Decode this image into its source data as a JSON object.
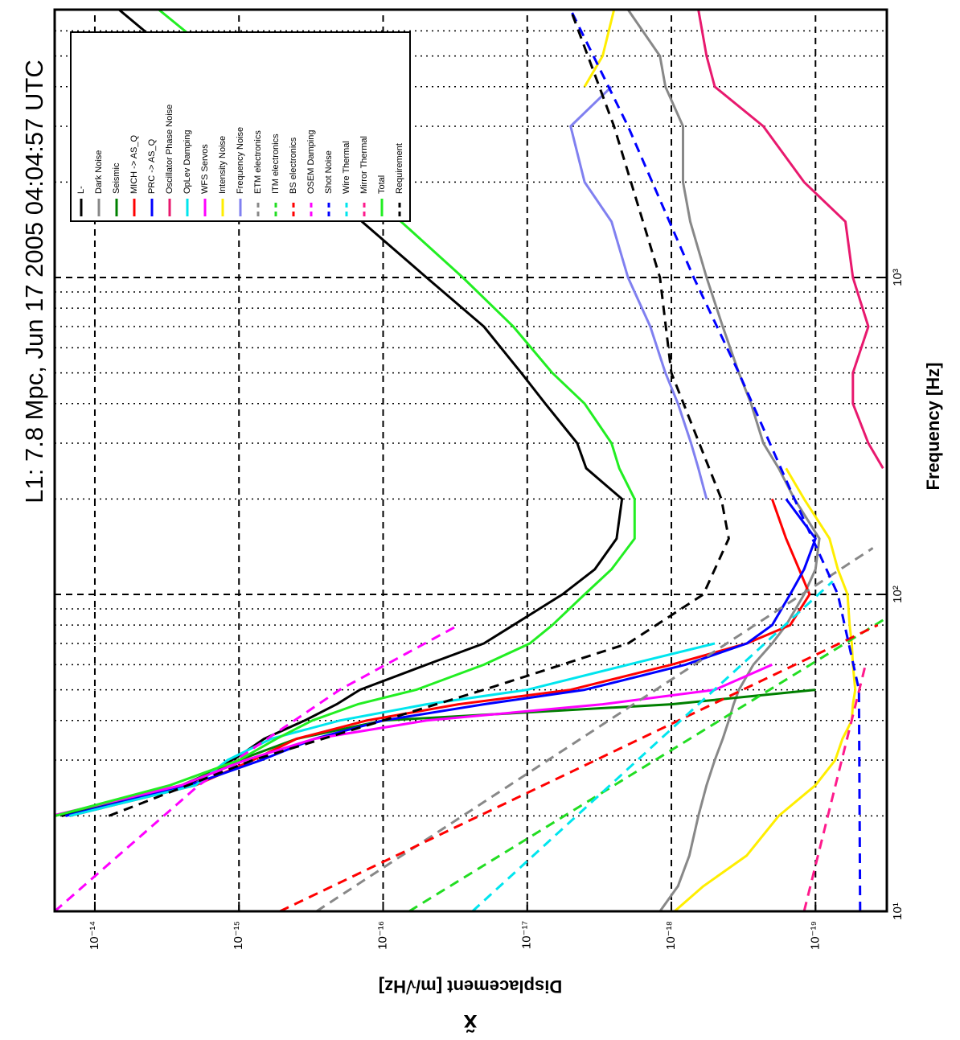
{
  "chart_data": {
    "type": "line",
    "title": "L1: 7.8 Mpc, Jun 17 2005 04:04:57 UTC",
    "xlabel": "Frequency [Hz]",
    "ylabel": "Displacement [m/√Hz]",
    "quantity_symbol": "x̃",
    "xscale": "log",
    "yscale": "log",
    "grid": true,
    "legend": "upper right",
    "xlim": [
      10,
      7000
    ],
    "ylim": [
      3.2e-20,
      1.9e-14
    ],
    "xticks": [
      {
        "value": 10,
        "label": "10¹"
      },
      {
        "value": 100,
        "label": "10²"
      },
      {
        "value": 1000,
        "label": "10³"
      }
    ],
    "xminor_ticks": [
      20,
      30,
      40,
      50,
      60,
      70,
      80,
      90,
      200,
      300,
      400,
      500,
      600,
      700,
      800,
      900,
      2000,
      3000,
      4000,
      5000,
      6000,
      7000
    ],
    "yticks": [
      {
        "value": 1e-14,
        "label": "10⁻¹⁴"
      },
      {
        "value": 1e-15,
        "label": "10⁻¹⁵"
      },
      {
        "value": 1e-16,
        "label": "10⁻¹⁶"
      },
      {
        "value": 1e-17,
        "label": "10⁻¹⁷"
      },
      {
        "value": 1e-18,
        "label": "10⁻¹⁸"
      },
      {
        "value": 1e-19,
        "label": "10⁻¹⁹"
      }
    ],
    "x": [
      10,
      12,
      15,
      20,
      25,
      30,
      35,
      40,
      45,
      50,
      60,
      70,
      80,
      100,
      120,
      150,
      200,
      250,
      300,
      400,
      500,
      700,
      1000,
      1500,
      2000,
      3000,
      4000,
      5000,
      7000
    ],
    "series": [
      {
        "name": "L-",
        "color": "#000000",
        "values": [
          null,
          null,
          null,
          1.7e-14,
          2.3e-15,
          1.1e-15,
          6.7e-16,
          3.5e-16,
          2.1e-16,
          1.45e-16,
          5e-17,
          2e-17,
          1.25e-17,
          5.7e-18,
          3.4e-18,
          2.4e-18,
          2.2e-18,
          3.9e-18,
          4.5e-18,
          7.5e-18,
          1.1e-17,
          2e-17,
          5e-17,
          1.4e-16,
          2.7e-16,
          7.6e-16,
          1.45e-15,
          2.8e-15,
          6.8e-15
        ]
      },
      {
        "name": "Dark Noise",
        "color": "#888888",
        "values": [
          1.2e-18,
          9e-19,
          7.5e-19,
          6.5e-19,
          5.7e-19,
          5e-19,
          4.4e-19,
          4e-19,
          3.7e-19,
          3.4e-19,
          2.7e-19,
          2e-19,
          1.6e-19,
          1.2e-19,
          1e-19,
          9.4e-20,
          1.4e-19,
          1.8e-19,
          2.3e-19,
          2.8e-19,
          3.4e-19,
          4.4e-19,
          5.7e-19,
          7.4e-19,
          8.3e-19,
          8.3e-19,
          1.1e-18,
          1.2e-18,
          2e-18
        ]
      },
      {
        "name": "Seismic",
        "color": "#008000",
        "values": [
          null,
          null,
          null,
          1.9e-14,
          2.5e-15,
          1e-15,
          4e-16,
          1e-16,
          1e-18,
          1e-19,
          null,
          null,
          null,
          null,
          null,
          null,
          null,
          null,
          null,
          null,
          null,
          null,
          null,
          null,
          null,
          null,
          null,
          null,
          null
        ]
      },
      {
        "name": "MICH -> AS_Q",
        "color": "#ff0000",
        "values": [
          null,
          null,
          null,
          1.5e-14,
          2e-15,
          8e-16,
          4e-16,
          1.3e-16,
          3e-17,
          5e-18,
          1e-18,
          3e-19,
          1.5e-19,
          1.1e-19,
          1.3e-19,
          1.6e-19,
          2e-19,
          null,
          null,
          null,
          null,
          null,
          null,
          null,
          null,
          null,
          null,
          null,
          null
        ]
      },
      {
        "name": "PRC -> AS_Q",
        "color": "#0000ff",
        "values": [
          null,
          null,
          null,
          1.6e-14,
          2.2e-15,
          7e-16,
          3e-16,
          1e-16,
          2e-17,
          4e-18,
          8e-19,
          3e-19,
          2e-19,
          1.5e-19,
          1.2e-19,
          1e-19,
          1.6e-19,
          null,
          null,
          null,
          null,
          null,
          null,
          null,
          null,
          null,
          null,
          null,
          null
        ]
      },
      {
        "name": "Oscillator Phase Noise",
        "color": "#e8196e",
        "values": [
          null,
          null,
          null,
          null,
          null,
          null,
          null,
          null,
          null,
          null,
          null,
          null,
          null,
          null,
          null,
          null,
          null,
          3.4e-20,
          4.3e-20,
          5.5e-20,
          5.5e-20,
          4.3e-20,
          5.5e-20,
          6.2e-20,
          1.2e-19,
          2.3e-19,
          5e-19,
          5.7e-19,
          6.5e-19
        ]
      },
      {
        "name": "OpLev Damping",
        "color": "#00e5ee",
        "values": [
          null,
          null,
          null,
          1.5e-14,
          2e-15,
          1.2e-15,
          6e-16,
          2e-16,
          5e-17,
          1e-17,
          2e-18,
          5e-19,
          null,
          null,
          null,
          null,
          null,
          null,
          null,
          null,
          null,
          null,
          null,
          null,
          null,
          null,
          null,
          null,
          null
        ]
      },
      {
        "name": "WFS Servos",
        "color": "#ff00ff",
        "values": [
          null,
          null,
          null,
          2e-14,
          2.5e-15,
          9e-16,
          3e-16,
          5e-17,
          3e-18,
          5e-19,
          2e-19,
          null,
          null,
          null,
          null,
          null,
          null,
          null,
          null,
          null,
          null,
          null,
          null,
          null,
          null,
          null,
          null,
          null,
          null
        ]
      },
      {
        "name": "Intensity Noise",
        "color": "#ffee00",
        "values": [
          9.5e-19,
          6e-19,
          3e-19,
          1.8e-19,
          1e-19,
          7.3e-20,
          6.5e-20,
          5.6e-20,
          5.5e-20,
          5.3e-20,
          5.5e-20,
          5.6e-20,
          5.8e-20,
          6e-20,
          7e-20,
          8e-20,
          1.2e-19,
          1.6e-19,
          null,
          null,
          null,
          null,
          null,
          null,
          null,
          null,
          4e-18,
          3e-18,
          2.5e-18
        ]
      },
      {
        "name": "Frequency Noise",
        "color": "#8080f0",
        "values": [
          null,
          null,
          null,
          null,
          null,
          null,
          null,
          null,
          null,
          null,
          null,
          null,
          null,
          null,
          null,
          null,
          5.7e-19,
          6.5e-19,
          7.3e-19,
          9e-19,
          1.1e-18,
          1.4e-18,
          2e-18,
          2.6e-18,
          4e-18,
          5e-18,
          2.6e-18,
          null,
          null
        ]
      },
      {
        "name": "ETM electronics",
        "color": "#888888",
        "dashed": true,
        "x": [
          10,
          140
        ],
        "values": [
          2.9e-16,
          4e-20
        ]
      },
      {
        "name": "ITM electronics",
        "color": "#22dd22",
        "dashed": true,
        "x": [
          10,
          83
        ],
        "values": [
          6.6e-17,
          3.4e-20
        ]
      },
      {
        "name": "BS electronics",
        "color": "#ff0000",
        "dashed": true,
        "x": [
          10,
          80
        ],
        "values": [
          5.2e-16,
          3.7e-20
        ]
      },
      {
        "name": "OSEM Damping",
        "color": "#ff00ff",
        "dashed": true,
        "x": [
          10,
          25,
          50,
          80
        ],
        "values": [
          1.9e-14,
          1.9e-15,
          2e-16,
          3e-17
        ]
      },
      {
        "name": "Shot Noise",
        "color": "#0000ff",
        "dashed": true,
        "x": [
          10,
          50,
          100,
          200,
          500,
          1000,
          3000,
          7000
        ],
        "values": [
          4.9e-20,
          5e-20,
          7e-20,
          1.4e-19,
          3.4e-19,
          7e-19,
          2e-18,
          5e-18
        ]
      },
      {
        "name": "Wire Thermal",
        "color": "#00e5ee",
        "dashed": true,
        "x": [
          10,
          110
        ],
        "values": [
          2.4e-17,
          7.6e-20
        ]
      },
      {
        "name": "Mirror Thermal",
        "color": "#ff1a8c",
        "dashed": true,
        "x": [
          10,
          60
        ],
        "values": [
          1.2e-19,
          4.5e-20
        ]
      },
      {
        "name": "Total",
        "color": "#22ee22",
        "values": [
          null,
          null,
          null,
          1.9e-14,
          3e-15,
          1e-15,
          5.5e-16,
          3.1e-16,
          1.5e-16,
          5.9e-17,
          2e-17,
          9.6e-18,
          6.7e-18,
          4e-18,
          2.6e-18,
          1.8e-18,
          1.8e-18,
          2.3e-18,
          2.6e-18,
          4e-18,
          6.7e-18,
          1.25e-17,
          2.8e-17,
          7.5e-17,
          1.5e-16,
          4.3e-16,
          7.6e-16,
          1.45e-15,
          3.6e-15
        ]
      },
      {
        "name": "Requirement",
        "color": "#000000",
        "dashed": true,
        "x": [
          20,
          30,
          40,
          50,
          70,
          100,
          150,
          200,
          500,
          1000,
          3000,
          7000
        ],
        "values": [
          8e-15,
          8e-16,
          1e-16,
          2e-17,
          2e-18,
          6e-19,
          4e-19,
          4.5e-19,
          1e-18,
          1.2e-18,
          2.5e-18,
          5e-18
        ]
      }
    ]
  }
}
